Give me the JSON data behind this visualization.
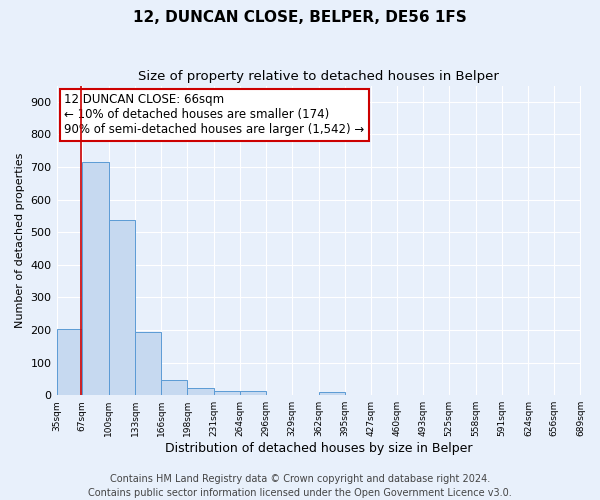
{
  "title": "12, DUNCAN CLOSE, BELPER, DE56 1FS",
  "subtitle": "Size of property relative to detached houses in Belper",
  "xlabel": "Distribution of detached houses by size in Belper",
  "ylabel": "Number of detached properties",
  "bar_edges": [
    35,
    67,
    100,
    133,
    166,
    198,
    231,
    264,
    296,
    329,
    362,
    395,
    427,
    460,
    493,
    525,
    558,
    591,
    624,
    656,
    689
  ],
  "bar_heights": [
    203,
    717,
    537,
    193,
    47,
    22,
    14,
    14,
    0,
    0,
    9,
    0,
    0,
    0,
    0,
    0,
    0,
    0,
    0,
    0
  ],
  "bar_color": "#c6d9f0",
  "bar_edge_color": "#5b9bd5",
  "ylim": [
    0,
    950
  ],
  "yticks": [
    0,
    100,
    200,
    300,
    400,
    500,
    600,
    700,
    800,
    900
  ],
  "tick_labels": [
    "35sqm",
    "67sqm",
    "100sqm",
    "133sqm",
    "166sqm",
    "198sqm",
    "231sqm",
    "264sqm",
    "296sqm",
    "329sqm",
    "362sqm",
    "395sqm",
    "427sqm",
    "460sqm",
    "493sqm",
    "525sqm",
    "558sqm",
    "591sqm",
    "624sqm",
    "656sqm",
    "689sqm"
  ],
  "property_line_x": 66,
  "property_line_color": "#cc0000",
  "annotation_line1": "12 DUNCAN CLOSE: 66sqm",
  "annotation_line2": "← 10% of detached houses are smaller (174)",
  "annotation_line3": "90% of semi-detached houses are larger (1,542) →",
  "footer_line1": "Contains HM Land Registry data © Crown copyright and database right 2024.",
  "footer_line2": "Contains public sector information licensed under the Open Government Licence v3.0.",
  "bg_color": "#e8f0fb",
  "grid_color": "#ffffff",
  "title_fontsize": 11,
  "subtitle_fontsize": 9.5,
  "xlabel_fontsize": 9,
  "ylabel_fontsize": 8,
  "annotation_fontsize": 8.5,
  "tick_fontsize": 6.5,
  "footer_fontsize": 7
}
